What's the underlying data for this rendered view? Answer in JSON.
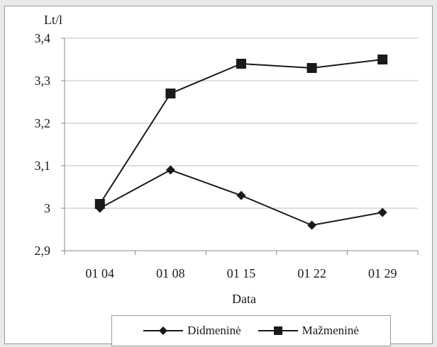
{
  "chart_data": {
    "type": "line",
    "title": "",
    "xlabel": "Data",
    "ylabel": "Lt/l",
    "categories": [
      "01 04",
      "01 08",
      "01 15",
      "01 22",
      "01 29"
    ],
    "ylim": [
      2.9,
      3.4
    ],
    "yticks": [
      2.9,
      3.0,
      3.1,
      3.2,
      3.3,
      3.4
    ],
    "ytick_labels": [
      "2,9",
      "3",
      "3,1",
      "3,2",
      "3,3",
      "3,4"
    ],
    "grid": true,
    "legend_position": "bottom",
    "series": [
      {
        "name": "Didmeninė",
        "marker": "diamond",
        "color": "#1a1a1a",
        "values": [
          3.0,
          3.09,
          3.03,
          2.96,
          2.99
        ]
      },
      {
        "name": "Mažmeninė",
        "marker": "square",
        "color": "#1a1a1a",
        "values": [
          3.01,
          3.27,
          3.34,
          3.33,
          3.35
        ]
      }
    ]
  }
}
